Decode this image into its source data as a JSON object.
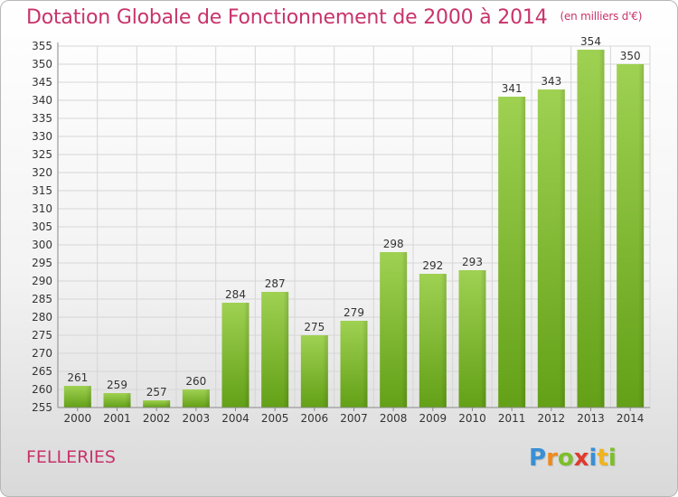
{
  "header": {
    "title": "Dotation Globale de Fonctionnement de 2000 à 2014",
    "unit": "(en milliers d'€)"
  },
  "footer": {
    "commune": "FELLERIES",
    "logo_letters": [
      {
        "ch": "P",
        "color": "#3a8fd4"
      },
      {
        "ch": "r",
        "color": "#f08a1c"
      },
      {
        "ch": "o",
        "color": "#7cbf2a"
      },
      {
        "ch": "x",
        "color": "#e03a2f"
      },
      {
        "ch": "i",
        "color": "#3a8fd4"
      },
      {
        "ch": "t",
        "color": "#f0b41c"
      },
      {
        "ch": "i",
        "color": "#7cbf2a"
      }
    ]
  },
  "chart_data": {
    "type": "bar",
    "categories": [
      "2000",
      "2001",
      "2002",
      "2003",
      "2004",
      "2005",
      "2006",
      "2007",
      "2008",
      "2009",
      "2010",
      "2011",
      "2012",
      "2013",
      "2014"
    ],
    "values": [
      261,
      259,
      257,
      260,
      284,
      287,
      275,
      279,
      298,
      292,
      293,
      341,
      343,
      354,
      350
    ],
    "ylim": [
      255,
      355
    ],
    "ytick_step": 5,
    "grid": true,
    "bar_color": "#79b22b",
    "bar_color_light": "#9fd152"
  }
}
